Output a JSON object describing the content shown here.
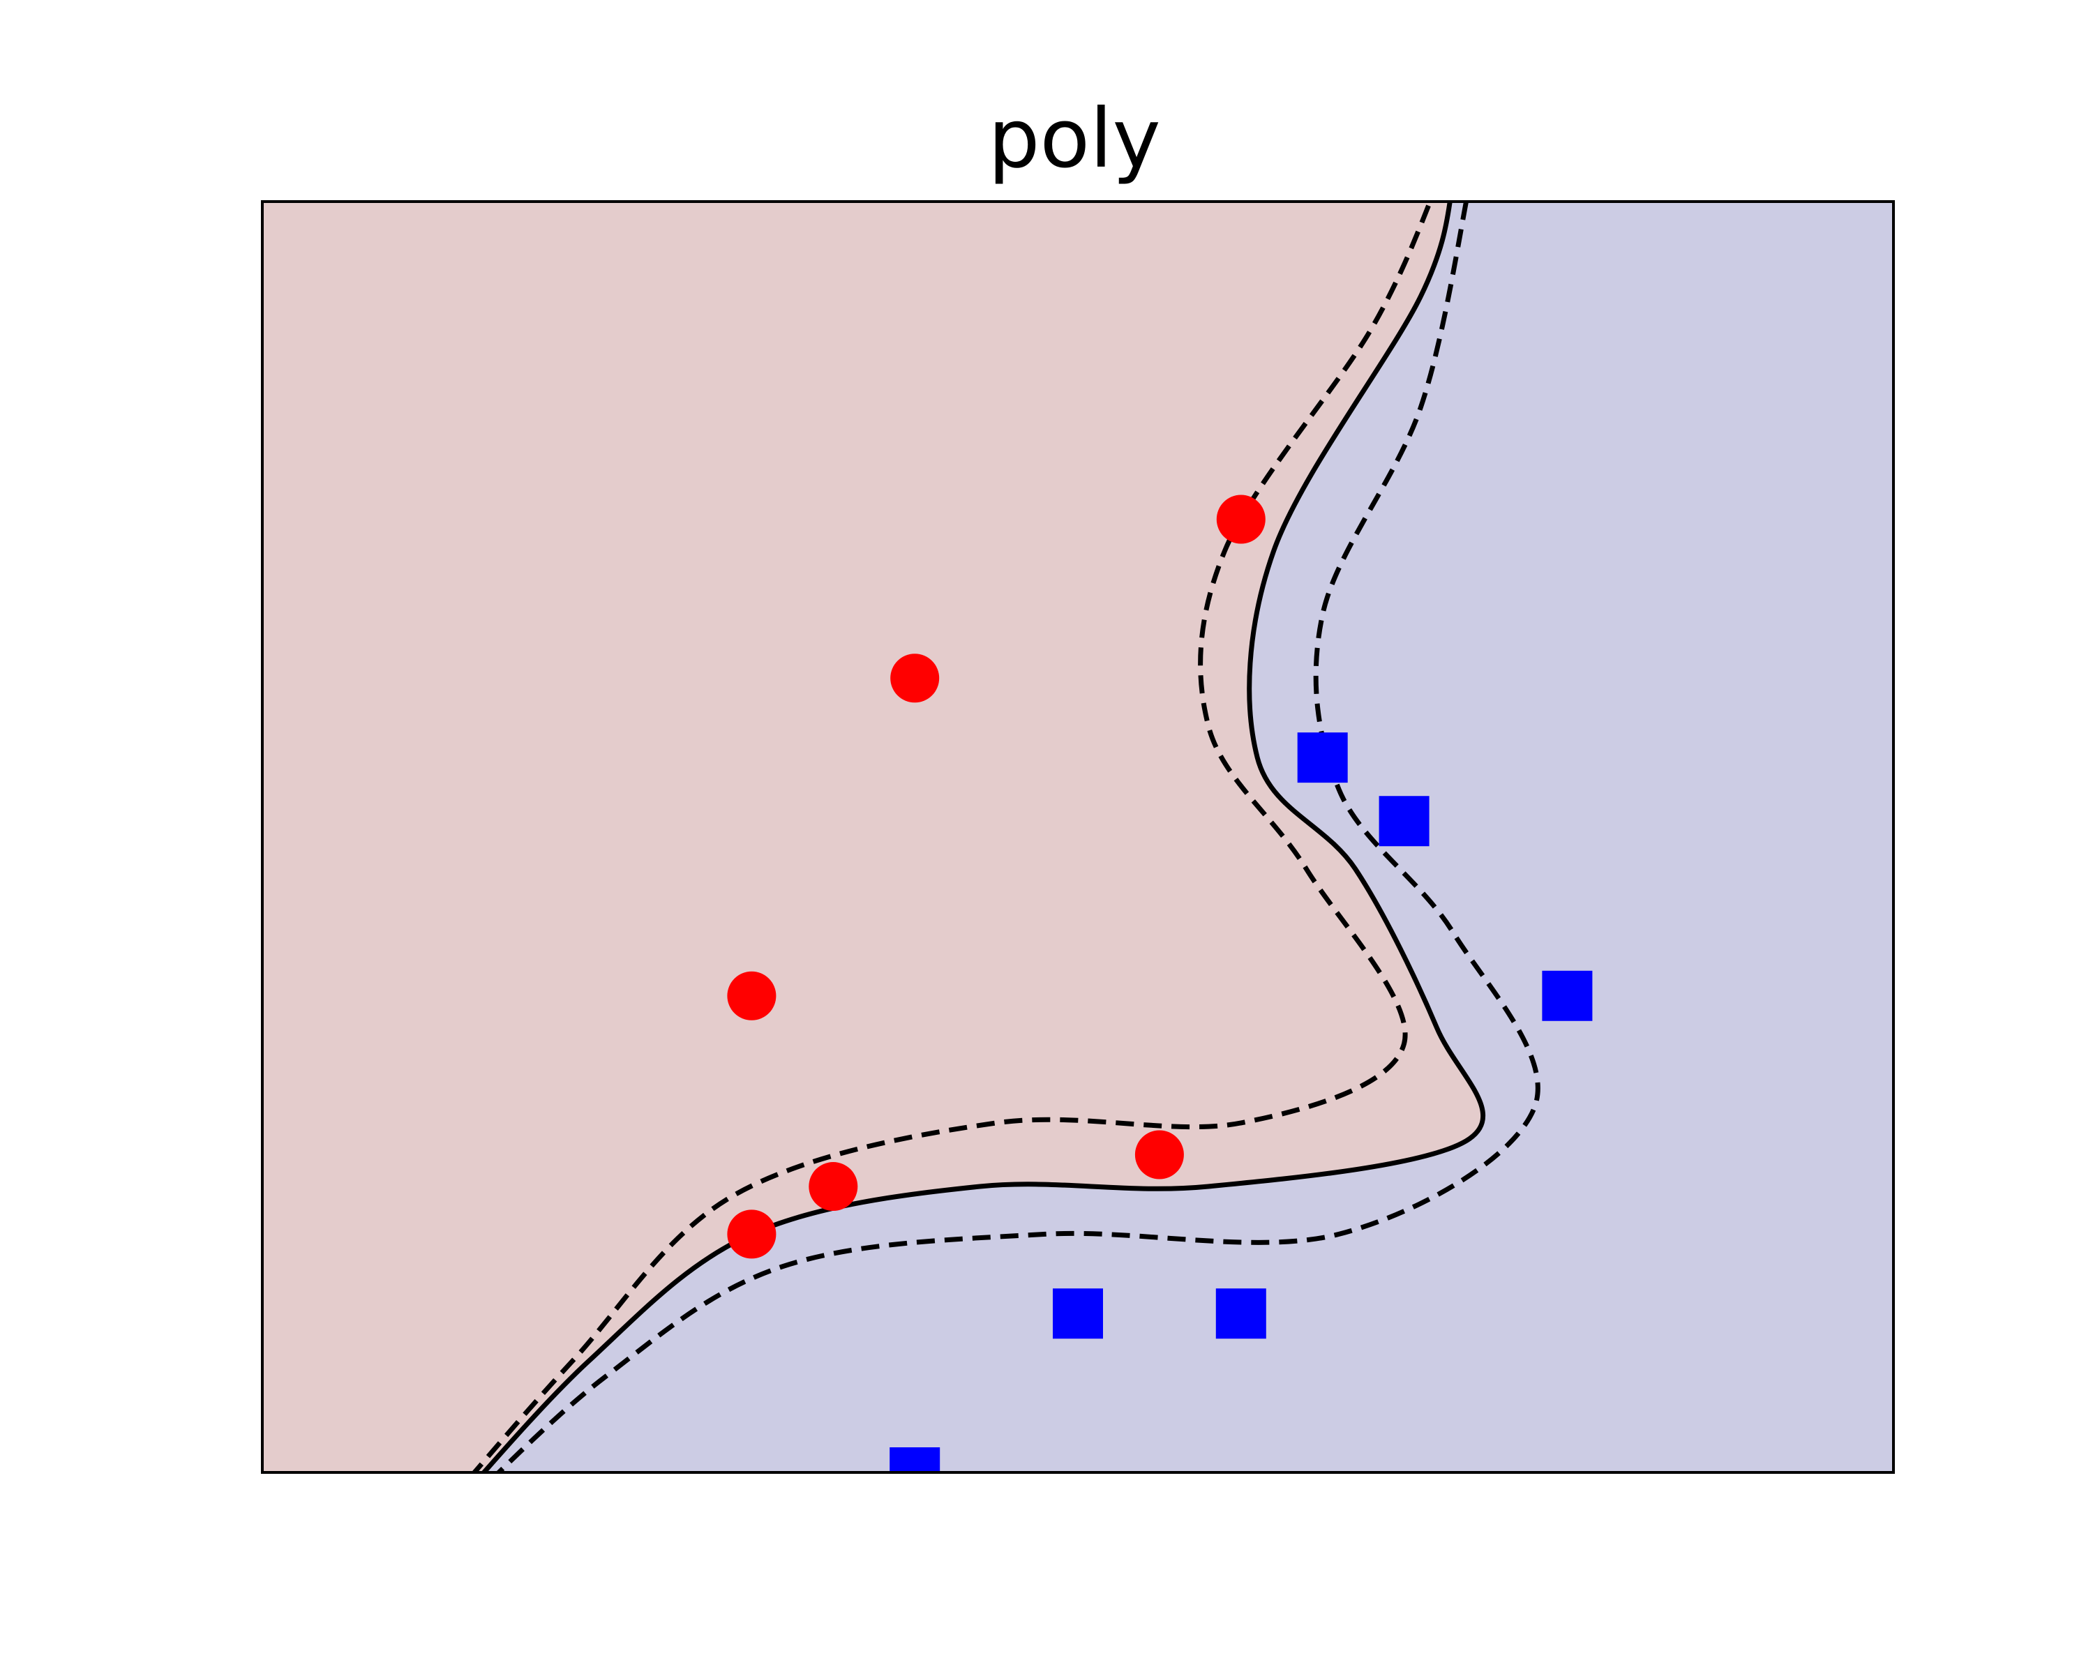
{
  "chart_data": {
    "type": "scatter",
    "title": "poly",
    "xlabel": "",
    "ylabel": "",
    "xlim": [
      0,
      10
    ],
    "ylim": [
      0,
      8
    ],
    "ticks_visible": false,
    "grid": false,
    "series": [
      {
        "marker": "circle",
        "color": "#ff0000",
        "points": [
          [
            6,
            6
          ],
          [
            4,
            5
          ],
          [
            3,
            3
          ],
          [
            3.5,
            1.8
          ],
          [
            3,
            1.5
          ],
          [
            5.5,
            2
          ]
        ]
      },
      {
        "marker": "square",
        "color": "#0000ff",
        "points": [
          [
            6.5,
            4.5
          ],
          [
            7,
            4.1
          ],
          [
            8,
            3
          ],
          [
            5,
            1
          ],
          [
            6,
            1
          ],
          [
            4,
            0
          ]
        ]
      }
    ],
    "decision_boundary": {
      "kernel": "poly",
      "levels": [
        -1,
        0,
        1
      ],
      "line_styles": [
        "dashed",
        "solid",
        "dashed"
      ],
      "class_fill_colors": [
        "#e4cccc",
        "#cccce4"
      ],
      "boundary": [
        [
          1.1,
          -0.3
        ],
        [
          2,
          0.7
        ],
        [
          3,
          1.5
        ],
        [
          4.4,
          1.8
        ],
        [
          5.8,
          1.8
        ],
        [
          7.4,
          2.1
        ],
        [
          7.2,
          2.8
        ],
        [
          6.7,
          3.8
        ],
        [
          6.1,
          4.5
        ],
        [
          6.2,
          5.8
        ],
        [
          7.1,
          7.4
        ],
        [
          7.3,
          8.1
        ]
      ],
      "margin_inner": [
        [
          1.05,
          -0.3
        ],
        [
          1.9,
          0.7
        ],
        [
          2.9,
          1.75
        ],
        [
          4.5,
          2.2
        ],
        [
          6.0,
          2.2
        ],
        [
          7.0,
          2.7
        ],
        [
          6.4,
          3.8
        ],
        [
          5.8,
          4.7
        ],
        [
          5.9,
          5.8
        ],
        [
          6.8,
          7.2
        ],
        [
          7.2,
          8.1
        ]
      ],
      "margin_outer": [
        [
          1.15,
          -0.3
        ],
        [
          2.1,
          0.6
        ],
        [
          3.2,
          1.3
        ],
        [
          4.8,
          1.5
        ],
        [
          6.6,
          1.5
        ],
        [
          7.8,
          2.3
        ],
        [
          7.3,
          3.4
        ],
        [
          6.6,
          4.3
        ],
        [
          6.5,
          5.4
        ],
        [
          7.1,
          6.7
        ],
        [
          7.4,
          8.1
        ]
      ]
    }
  }
}
